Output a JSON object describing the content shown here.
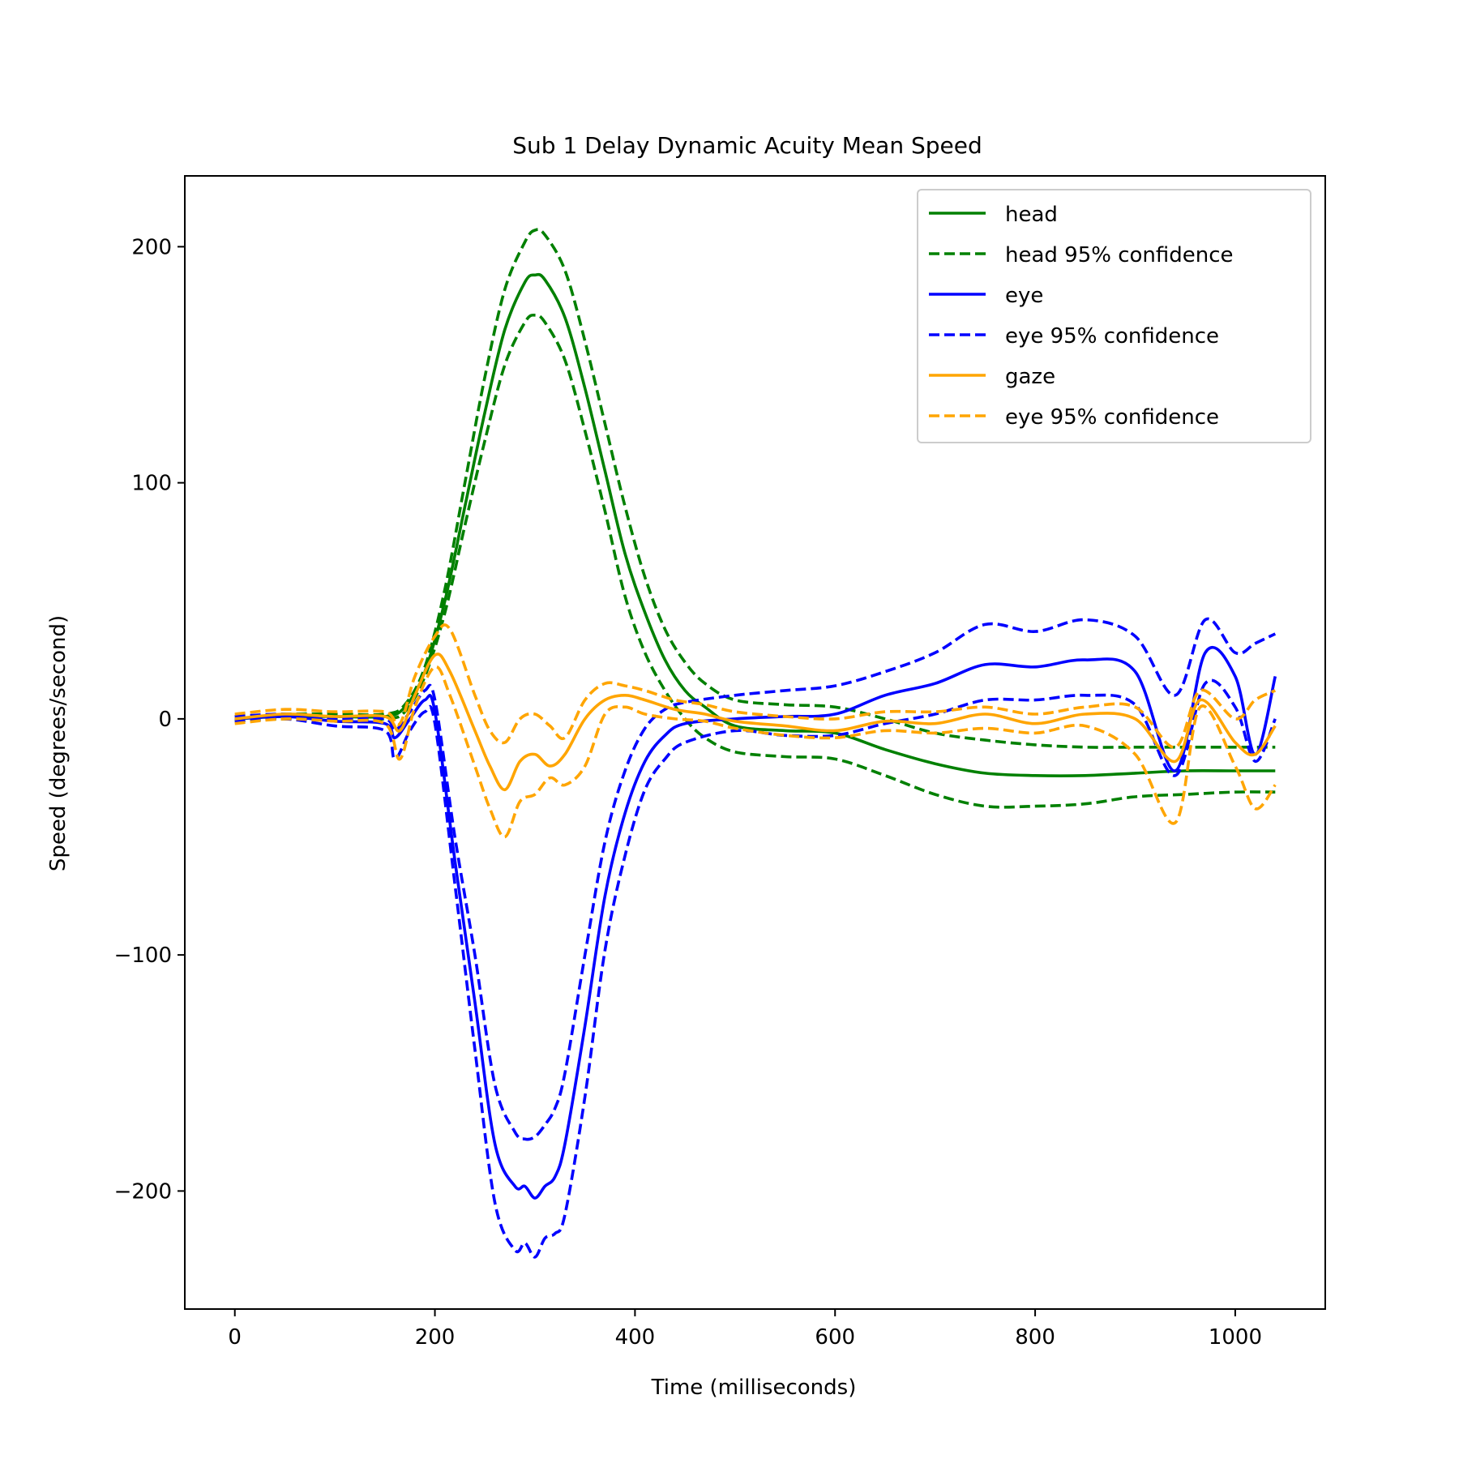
{
  "chart_data": {
    "type": "line",
    "title": "Sub 1 Delay Dynamic Acuity Mean Speed",
    "xlabel": "Time (milliseconds)",
    "ylabel": "Speed (degrees/second)",
    "xlim": [
      -50,
      1090
    ],
    "ylim": [
      -250,
      230
    ],
    "xticks": [
      0,
      200,
      400,
      600,
      800,
      1000
    ],
    "yticks": [
      -200,
      -100,
      0,
      100,
      200
    ],
    "xtick_labels": [
      "0",
      "200",
      "400",
      "600",
      "800",
      "1000"
    ],
    "ytick_labels": [
      "−200",
      "−100",
      "0",
      "100",
      "200"
    ],
    "grid": false,
    "legend_position": "top-right",
    "colors": {
      "head": "#008000",
      "eye": "#0000ff",
      "gaze": "#ffa500"
    },
    "series": [
      {
        "name": "head",
        "label": "head",
        "color": "#008000",
        "style": "solid",
        "x": [
          0,
          50,
          100,
          150,
          170,
          190,
          210,
          230,
          250,
          270,
          290,
          300,
          310,
          330,
          350,
          370,
          390,
          410,
          430,
          450,
          470,
          500,
          550,
          600,
          650,
          700,
          750,
          800,
          850,
          900,
          950,
          1000,
          1040
        ],
        "y": [
          0,
          1,
          1,
          1,
          5,
          20,
          50,
          90,
          130,
          165,
          185,
          188,
          186,
          170,
          140,
          105,
          70,
          45,
          25,
          12,
          5,
          -3,
          -5,
          -6,
          -13,
          -19,
          -23,
          -24,
          -24,
          -23,
          -22,
          -22,
          -22
        ]
      },
      {
        "name": "head upper",
        "label": "head 95% confidence",
        "color": "#008000",
        "style": "dashed",
        "x": [
          0,
          50,
          100,
          150,
          170,
          190,
          210,
          230,
          250,
          270,
          290,
          300,
          310,
          330,
          350,
          370,
          390,
          410,
          430,
          450,
          470,
          500,
          550,
          600,
          650,
          700,
          750,
          800,
          850,
          900,
          950,
          1000,
          1040
        ],
        "y": [
          1,
          2,
          2,
          2,
          6,
          22,
          55,
          100,
          145,
          182,
          202,
          207,
          205,
          190,
          160,
          125,
          90,
          60,
          38,
          24,
          15,
          8,
          6,
          5,
          0,
          -6,
          -9,
          -11,
          -12,
          -12,
          -12,
          -12,
          -12
        ]
      },
      {
        "name": "head lower",
        "label": "head 95% confidence",
        "color": "#008000",
        "style": "dashed",
        "x": [
          0,
          50,
          100,
          150,
          170,
          190,
          210,
          230,
          250,
          270,
          290,
          300,
          310,
          330,
          350,
          370,
          390,
          410,
          430,
          450,
          470,
          500,
          550,
          600,
          650,
          700,
          750,
          800,
          850,
          900,
          950,
          1000,
          1040
        ],
        "y": [
          -1,
          0,
          0,
          0,
          3,
          18,
          45,
          82,
          118,
          150,
          168,
          171,
          168,
          152,
          122,
          88,
          52,
          28,
          12,
          0,
          -8,
          -14,
          -16,
          -17,
          -24,
          -32,
          -37,
          -37,
          -36,
          -33,
          -32,
          -31,
          -31
        ]
      },
      {
        "name": "eye",
        "label": "eye",
        "color": "#0000ff",
        "style": "solid",
        "x": [
          0,
          50,
          100,
          150,
          160,
          175,
          190,
          200,
          220,
          240,
          260,
          280,
          290,
          300,
          310,
          320,
          330,
          350,
          370,
          390,
          410,
          430,
          450,
          500,
          550,
          600,
          650,
          700,
          750,
          800,
          850,
          900,
          940,
          970,
          1000,
          1020,
          1040
        ],
        "y": [
          0,
          1,
          -1,
          -2,
          -8,
          0,
          8,
          3,
          -60,
          -120,
          -180,
          -198,
          -198,
          -203,
          -198,
          -194,
          -180,
          -130,
          -75,
          -40,
          -18,
          -7,
          -2,
          0,
          1,
          2,
          10,
          15,
          23,
          22,
          25,
          20,
          -22,
          28,
          18,
          -15,
          18
        ]
      },
      {
        "name": "eye upper",
        "label": "eye 95% confidence",
        "color": "#0000ff",
        "style": "dashed",
        "x": [
          0,
          50,
          100,
          150,
          160,
          175,
          190,
          200,
          220,
          240,
          260,
          280,
          290,
          300,
          310,
          320,
          330,
          350,
          370,
          390,
          410,
          430,
          450,
          500,
          550,
          600,
          650,
          700,
          750,
          800,
          850,
          900,
          940,
          970,
          1000,
          1020,
          1040
        ],
        "y": [
          1,
          2,
          0,
          0,
          -5,
          3,
          12,
          8,
          -50,
          -100,
          -155,
          -175,
          -178,
          -177,
          -172,
          -165,
          -150,
          -100,
          -52,
          -22,
          -4,
          4,
          7,
          10,
          12,
          14,
          20,
          28,
          40,
          37,
          42,
          35,
          10,
          42,
          28,
          32,
          36
        ]
      },
      {
        "name": "eye lower",
        "label": "eye 95% confidence",
        "color": "#0000ff",
        "style": "dashed",
        "x": [
          0,
          50,
          100,
          150,
          160,
          175,
          190,
          200,
          220,
          240,
          260,
          280,
          290,
          300,
          310,
          320,
          330,
          350,
          370,
          390,
          410,
          430,
          450,
          500,
          550,
          600,
          650,
          700,
          750,
          800,
          850,
          900,
          940,
          970,
          1000,
          1020,
          1040
        ],
        "y": [
          -1,
          0,
          -3,
          -5,
          -17,
          -5,
          3,
          -2,
          -70,
          -140,
          -205,
          -225,
          -222,
          -228,
          -220,
          -218,
          -210,
          -160,
          -98,
          -58,
          -30,
          -17,
          -10,
          -5,
          -7,
          -7,
          -2,
          2,
          8,
          8,
          10,
          6,
          -24,
          15,
          5,
          -18,
          0
        ]
      },
      {
        "name": "gaze",
        "label": "gaze",
        "color": "#ffa500",
        "style": "solid",
        "x": [
          0,
          50,
          100,
          150,
          165,
          180,
          200,
          215,
          240,
          255,
          270,
          285,
          300,
          315,
          330,
          350,
          370,
          390,
          410,
          440,
          470,
          500,
          550,
          600,
          650,
          700,
          750,
          800,
          850,
          900,
          940,
          965,
          1000,
          1020,
          1040
        ],
        "y": [
          0,
          2,
          1,
          1,
          -5,
          10,
          27,
          20,
          -5,
          -20,
          -30,
          -18,
          -15,
          -20,
          -15,
          0,
          8,
          10,
          8,
          4,
          2,
          -1,
          -3,
          -5,
          -1,
          -2,
          2,
          -2,
          2,
          0,
          -18,
          8,
          -10,
          -15,
          -3
        ]
      },
      {
        "name": "gaze upper",
        "label": "eye 95% confidence",
        "color": "#ffa500",
        "style": "dashed",
        "x": [
          0,
          50,
          100,
          150,
          165,
          180,
          200,
          215,
          240,
          255,
          270,
          285,
          300,
          315,
          330,
          350,
          370,
          390,
          410,
          440,
          470,
          500,
          550,
          600,
          650,
          700,
          750,
          800,
          850,
          900,
          940,
          965,
          1000,
          1020,
          1040
        ],
        "y": [
          2,
          4,
          3,
          3,
          -2,
          18,
          35,
          38,
          10,
          -5,
          -10,
          0,
          2,
          -3,
          -8,
          8,
          15,
          14,
          12,
          8,
          6,
          3,
          1,
          0,
          3,
          3,
          5,
          2,
          5,
          5,
          -12,
          12,
          0,
          8,
          12
        ]
      },
      {
        "name": "gaze lower",
        "label": "eye 95% confidence",
        "color": "#ffa500",
        "style": "dashed",
        "x": [
          0,
          50,
          100,
          150,
          165,
          180,
          200,
          215,
          240,
          255,
          270,
          285,
          300,
          315,
          330,
          350,
          370,
          390,
          410,
          440,
          470,
          500,
          550,
          600,
          650,
          700,
          750,
          800,
          850,
          900,
          940,
          965,
          1000,
          1020,
          1040
        ],
        "y": [
          -2,
          0,
          -1,
          -2,
          -17,
          5,
          22,
          10,
          -20,
          -38,
          -50,
          -35,
          -32,
          -25,
          -28,
          -20,
          2,
          5,
          2,
          0,
          -1,
          -4,
          -7,
          -8,
          -5,
          -6,
          -4,
          -6,
          -3,
          -15,
          -44,
          5,
          -20,
          -38,
          -28
        ]
      }
    ],
    "legend": [
      {
        "label": "head",
        "color": "#008000",
        "style": "solid"
      },
      {
        "label": "head 95% confidence",
        "color": "#008000",
        "style": "dashed"
      },
      {
        "label": "eye",
        "color": "#0000ff",
        "style": "solid"
      },
      {
        "label": "eye 95% confidence",
        "color": "#0000ff",
        "style": "dashed"
      },
      {
        "label": "gaze",
        "color": "#ffa500",
        "style": "solid"
      },
      {
        "label": "eye 95% confidence",
        "color": "#ffa500",
        "style": "dashed"
      }
    ]
  }
}
